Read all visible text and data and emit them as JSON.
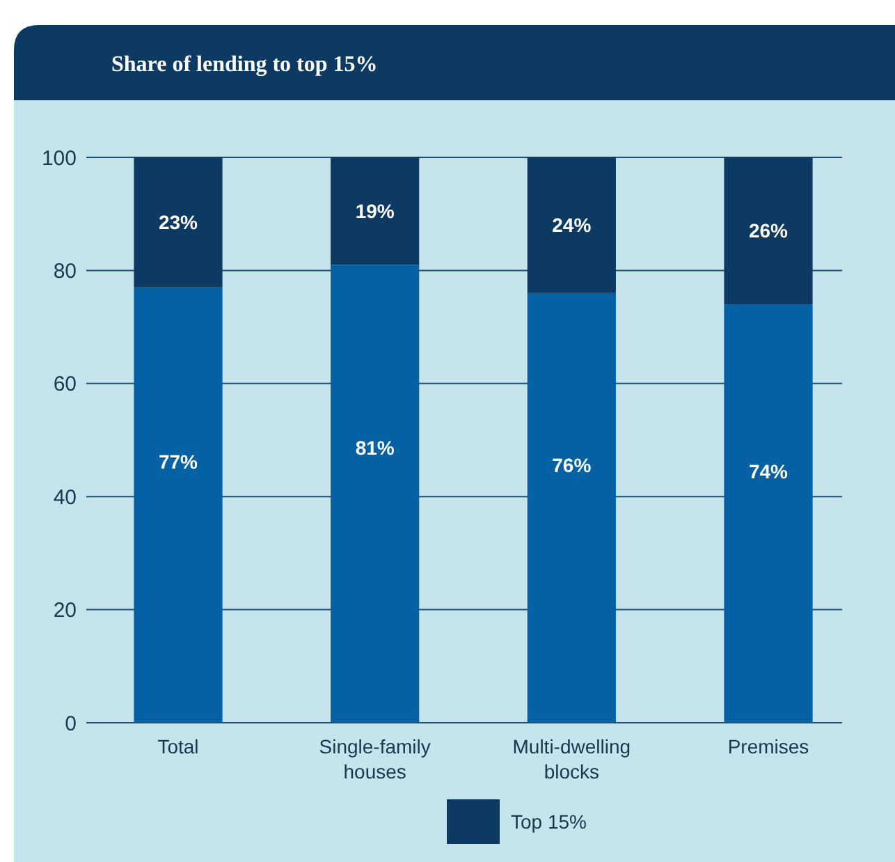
{
  "chart_data": {
    "type": "bar",
    "title": "Share of lending to top 15%",
    "stacked": true,
    "categories": [
      "Total",
      "Single-family houses",
      "Multi-dwelling blocks",
      "Premises"
    ],
    "series": [
      {
        "color": "#0461a3",
        "values": [
          77,
          81,
          76,
          74
        ],
        "value_labels": [
          "77%",
          "81%",
          "76%",
          "74%"
        ]
      },
      {
        "name": "Top 15%",
        "color": "#0c3a62",
        "values": [
          23,
          19,
          24,
          26
        ],
        "value_labels": [
          "23%",
          "19%",
          "24%",
          "26%"
        ]
      }
    ],
    "ylim": [
      0,
      100
    ],
    "yticks": [
      0,
      20,
      40,
      60,
      80,
      100
    ],
    "grid": "y",
    "legend": "bottom"
  }
}
